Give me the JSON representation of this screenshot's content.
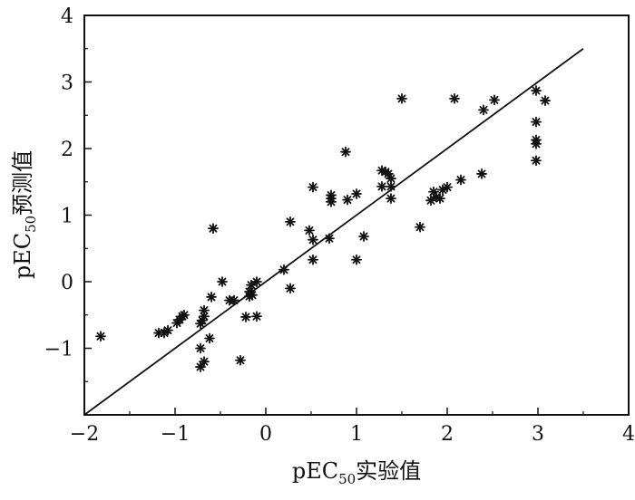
{
  "chart_data": {
    "type": "scatter",
    "title": "",
    "xlabel": {
      "main": "pEC",
      "sub": "50",
      "suffix": "实验值"
    },
    "ylabel": {
      "main": "pEC",
      "sub": "50",
      "suffix": "预测值"
    },
    "xlim": [
      -2,
      4
    ],
    "ylim": [
      -2,
      4
    ],
    "xticks": [
      -2,
      -1,
      0,
      1,
      2,
      3,
      4
    ],
    "yticks": [
      -1,
      0,
      1,
      2,
      3,
      4
    ],
    "xtick_labels": [
      "−2",
      "−1",
      "0",
      "1",
      "2",
      "3",
      "4"
    ],
    "ytick_labels": [
      "−1",
      "0",
      "1",
      "2",
      "3",
      "4"
    ],
    "grid": false,
    "marker": "asterisk",
    "fit_line": {
      "x": [
        -2.0,
        3.5
      ],
      "y": [
        -2.0,
        3.5
      ]
    },
    "points": [
      [
        -1.82,
        -0.82
      ],
      [
        -1.18,
        -0.77
      ],
      [
        -1.12,
        -0.77
      ],
      [
        -1.08,
        -0.73
      ],
      [
        -0.98,
        -0.62
      ],
      [
        -0.95,
        -0.57
      ],
      [
        -0.92,
        -0.52
      ],
      [
        -0.9,
        -0.5
      ],
      [
        -0.72,
        -0.63
      ],
      [
        -0.7,
        -0.58
      ],
      [
        -0.68,
        -0.52
      ],
      [
        -0.68,
        -0.43
      ],
      [
        -0.72,
        -1.0
      ],
      [
        -0.68,
        -1.2
      ],
      [
        -0.72,
        -1.28
      ],
      [
        -0.62,
        -0.85
      ],
      [
        -0.6,
        -0.23
      ],
      [
        -0.58,
        0.8
      ],
      [
        -0.48,
        0.0
      ],
      [
        -0.4,
        -0.28
      ],
      [
        -0.35,
        -0.28
      ],
      [
        -0.28,
        -1.18
      ],
      [
        -0.22,
        -0.53
      ],
      [
        -0.18,
        -0.22
      ],
      [
        -0.18,
        -0.15
      ],
      [
        -0.16,
        -0.05
      ],
      [
        -0.15,
        -0.2
      ],
      [
        -0.1,
        0.0
      ],
      [
        -0.1,
        -0.52
      ],
      [
        0.2,
        0.18
      ],
      [
        0.27,
        0.9
      ],
      [
        0.27,
        -0.1
      ],
      [
        0.48,
        0.77
      ],
      [
        0.52,
        1.42
      ],
      [
        0.52,
        0.63
      ],
      [
        0.52,
        0.33
      ],
      [
        0.7,
        0.65
      ],
      [
        0.72,
        1.3
      ],
      [
        0.72,
        1.25
      ],
      [
        0.72,
        1.2
      ],
      [
        0.88,
        1.95
      ],
      [
        0.9,
        1.23
      ],
      [
        1.0,
        1.32
      ],
      [
        1.0,
        0.33
      ],
      [
        1.08,
        0.68
      ],
      [
        1.28,
        1.43
      ],
      [
        1.28,
        1.67
      ],
      [
        1.32,
        1.65
      ],
      [
        1.35,
        1.62
      ],
      [
        1.38,
        1.55
      ],
      [
        1.38,
        1.43
      ],
      [
        1.38,
        1.25
      ],
      [
        1.5,
        2.75
      ],
      [
        1.7,
        0.82
      ],
      [
        1.82,
        1.22
      ],
      [
        1.85,
        1.35
      ],
      [
        1.88,
        1.27
      ],
      [
        1.92,
        1.25
      ],
      [
        1.95,
        1.38
      ],
      [
        2.0,
        1.42
      ],
      [
        2.08,
        2.75
      ],
      [
        2.15,
        1.53
      ],
      [
        2.38,
        1.62
      ],
      [
        2.4,
        2.58
      ],
      [
        2.52,
        2.73
      ],
      [
        2.98,
        2.87
      ],
      [
        2.98,
        2.4
      ],
      [
        2.98,
        2.13
      ],
      [
        2.98,
        2.07
      ],
      [
        2.98,
        1.82
      ],
      [
        3.08,
        2.72
      ]
    ]
  }
}
